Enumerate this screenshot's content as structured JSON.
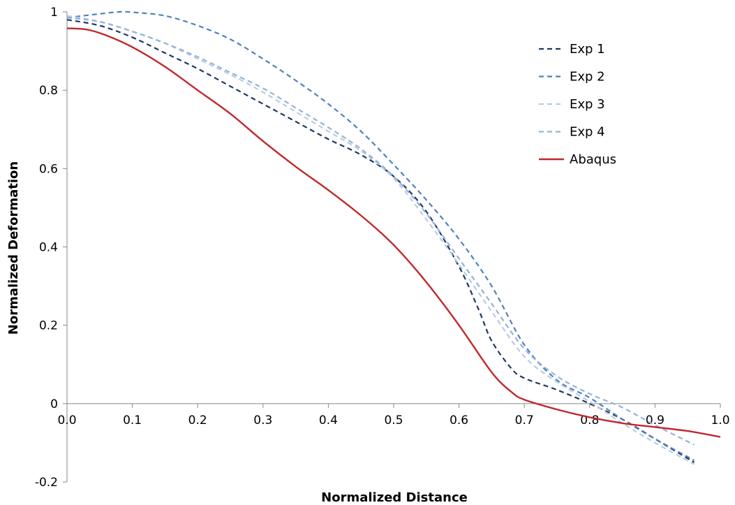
{
  "chart_data": {
    "type": "line",
    "title": "",
    "xlabel": "Normalized Distance",
    "ylabel": "Normalized Deformation",
    "xlim": [
      0.0,
      1.0
    ],
    "ylim": [
      -0.2,
      1.0
    ],
    "x_ticks": [
      0.0,
      0.1,
      0.2,
      0.3,
      0.4,
      0.5,
      0.6,
      0.7,
      0.8,
      0.9,
      1.0
    ],
    "x_tick_labels": [
      "0.0",
      "0.1",
      "0.2",
      "0.3",
      "0.4",
      "0.5",
      "0.6",
      "0.7",
      "0.8",
      "0.9",
      "1.0"
    ],
    "y_ticks": [
      -0.2,
      0,
      0.2,
      0.4,
      0.6,
      0.8,
      1
    ],
    "y_tick_labels": [
      "-0.2",
      "0",
      "0.2",
      "0.4",
      "0.6",
      "0.8",
      "1"
    ],
    "grid": false,
    "legend_position": "top-right",
    "series": [
      {
        "name": "Exp 1",
        "color": "#1f3864",
        "dash": "dashed",
        "x": [
          0.0,
          0.05,
          0.1,
          0.15,
          0.2,
          0.25,
          0.3,
          0.35,
          0.4,
          0.45,
          0.5,
          0.55,
          0.6,
          0.63,
          0.65,
          0.68,
          0.7,
          0.75,
          0.8,
          0.85,
          0.9,
          0.96
        ],
        "y": [
          0.98,
          0.965,
          0.935,
          0.895,
          0.855,
          0.81,
          0.765,
          0.72,
          0.675,
          0.635,
          0.58,
          0.49,
          0.35,
          0.24,
          0.16,
          0.09,
          0.065,
          0.035,
          0.0,
          -0.04,
          -0.09,
          -0.15
        ]
      },
      {
        "name": "Exp 2",
        "color": "#4f81bd",
        "dash": "dashed",
        "x": [
          0.0,
          0.05,
          0.08,
          0.1,
          0.15,
          0.2,
          0.25,
          0.3,
          0.35,
          0.4,
          0.45,
          0.5,
          0.55,
          0.6,
          0.65,
          0.7,
          0.75,
          0.8,
          0.85,
          0.9,
          0.96
        ],
        "y": [
          0.985,
          0.995,
          1.0,
          0.999,
          0.99,
          0.965,
          0.93,
          0.88,
          0.825,
          0.765,
          0.695,
          0.61,
          0.52,
          0.42,
          0.3,
          0.15,
          0.06,
          0.015,
          -0.04,
          -0.09,
          -0.145
        ]
      },
      {
        "name": "Exp 3",
        "color": "#b8cce4",
        "dash": "dashed",
        "x": [
          0.0,
          0.05,
          0.1,
          0.15,
          0.2,
          0.25,
          0.3,
          0.35,
          0.4,
          0.45,
          0.5,
          0.55,
          0.6,
          0.65,
          0.7,
          0.75,
          0.8,
          0.85,
          0.9,
          0.96
        ],
        "y": [
          0.99,
          0.975,
          0.95,
          0.92,
          0.88,
          0.84,
          0.795,
          0.745,
          0.695,
          0.645,
          0.575,
          0.47,
          0.355,
          0.235,
          0.12,
          0.055,
          0.005,
          -0.05,
          -0.1,
          -0.155
        ]
      },
      {
        "name": "Exp 4",
        "color": "#95b3d7",
        "dash": "dashed",
        "x": [
          0.0,
          0.05,
          0.1,
          0.15,
          0.2,
          0.25,
          0.3,
          0.35,
          0.4,
          0.45,
          0.5,
          0.55,
          0.6,
          0.65,
          0.7,
          0.75,
          0.8,
          0.85,
          0.9,
          0.96
        ],
        "y": [
          0.985,
          0.975,
          0.95,
          0.92,
          0.885,
          0.845,
          0.805,
          0.755,
          0.705,
          0.65,
          0.58,
          0.485,
          0.37,
          0.255,
          0.14,
          0.07,
          0.025,
          -0.01,
          -0.055,
          -0.105
        ]
      },
      {
        "name": "Abaqus",
        "color": "#c0282d",
        "dash": "solid",
        "x": [
          0.0,
          0.03,
          0.06,
          0.1,
          0.15,
          0.2,
          0.25,
          0.3,
          0.35,
          0.4,
          0.45,
          0.5,
          0.55,
          0.6,
          0.65,
          0.68,
          0.7,
          0.75,
          0.8,
          0.85,
          0.9,
          0.95,
          1.0
        ],
        "y": [
          0.958,
          0.955,
          0.94,
          0.91,
          0.86,
          0.8,
          0.74,
          0.67,
          0.605,
          0.545,
          0.48,
          0.405,
          0.31,
          0.2,
          0.08,
          0.03,
          0.01,
          -0.015,
          -0.035,
          -0.05,
          -0.06,
          -0.07,
          -0.085
        ]
      }
    ]
  }
}
